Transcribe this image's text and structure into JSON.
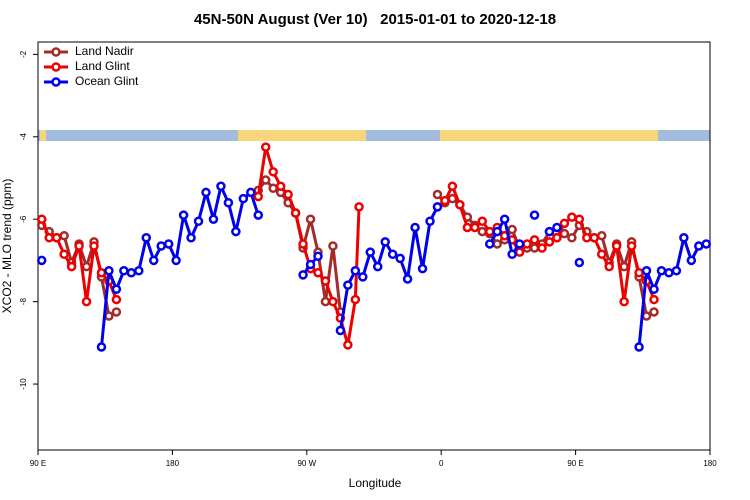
{
  "chart_data": {
    "type": "line",
    "title": "45N-50N August (Ver 10)   2015-01-01 to 2020-12-18",
    "x_label": "Longitude",
    "y_label": "XCO2 - MLO trend (ppm)",
    "xlim": [
      90,
      540
    ],
    "ylim": [
      -11.6,
      -1.7
    ],
    "xticks": [
      {
        "value": 90,
        "label": "90 E"
      },
      180,
      {
        "value": 270,
        "label": "90 W"
      },
      {
        "value": 360,
        "label": "0"
      },
      {
        "value": 450,
        "label": "90 E"
      },
      {
        "value": 540,
        "label": "180"
      }
    ],
    "yticks": [
      -2,
      -4,
      -6,
      -8,
      -10
    ],
    "legend": "top-left",
    "series": [
      {
        "name": "Land Nadir",
        "color": "#a52a2a",
        "x": [
          92.5,
          97.5,
          102.5,
          107.5,
          112.5,
          117.5,
          122.5,
          127.5,
          132.5,
          137.5,
          142.5,
          147.5,
          237.5,
          242.5,
          247.5,
          252.5,
          257.5,
          262.5,
          267.5,
          272.5,
          277.5,
          282.5,
          287.5,
          292.5,
          297.5,
          357.5,
          362.5,
          367.5,
          372.5,
          377.5,
          382.5,
          387.5,
          392.5,
          397.5,
          402.5,
          407.5,
          412.5,
          417.5,
          422.5,
          427.5,
          432.5,
          437.5,
          442.5,
          447.5,
          452.5,
          457.5,
          462.5,
          467.5,
          472.5,
          477.5,
          482.5,
          487.5,
          492.5,
          497.5,
          502.5
        ],
        "values": [
          -6.15,
          -6.3,
          -6.45,
          -6.4,
          -7.05,
          -6.6,
          -7.15,
          -6.55,
          -7.4,
          -8.35,
          -8.25,
          null,
          -5.3,
          -5.05,
          -5.25,
          -5.35,
          -5.6,
          -5.85,
          -6.7,
          -6.0,
          -6.8,
          -8.0,
          -6.65,
          -8.25,
          null,
          -5.4,
          -5.6,
          -5.5,
          -5.65,
          -5.95,
          -6.15,
          -6.3,
          -6.35,
          -6.6,
          -6.5,
          -6.25,
          -6.7,
          -6.7,
          -6.7,
          -6.6,
          -6.3,
          -6.45,
          -6.35,
          -6.45,
          -6.15,
          -6.3,
          -6.45,
          -6.4,
          -7.05,
          -6.6,
          -7.15,
          -6.55,
          -7.4,
          -8.35,
          -8.25
        ]
      },
      {
        "name": "Land Glint",
        "color": "#ee0000",
        "x": [
          92.5,
          97.5,
          102.5,
          107.5,
          112.5,
          117.5,
          122.5,
          127.5,
          132.5,
          137.5,
          142.5,
          147.5,
          237.5,
          242.5,
          247.5,
          252.5,
          257.5,
          262.5,
          267.5,
          272.5,
          277.5,
          282.5,
          287.5,
          292.5,
          297.5,
          302.5,
          305,
          310,
          357.5,
          362.5,
          367.5,
          372.5,
          377.5,
          382.5,
          387.5,
          392.5,
          397.5,
          402.5,
          407.5,
          412.5,
          417.5,
          422.5,
          427.5,
          432.5,
          437.5,
          442.5,
          447.5,
          452.5,
          457.5,
          462.5,
          467.5,
          472.5,
          477.5,
          482.5,
          487.5,
          492.5,
          497.5,
          502.5
        ],
        "values": [
          -6.0,
          -6.45,
          -6.45,
          -6.85,
          -7.15,
          -6.65,
          -8.0,
          -6.65,
          -7.3,
          -7.5,
          -7.95,
          null,
          -5.45,
          -4.25,
          -4.85,
          -5.2,
          -5.4,
          -5.85,
          -6.6,
          -7.2,
          -7.3,
          -7.5,
          -8.0,
          -8.4,
          -9.05,
          -7.95,
          -5.7,
          null,
          -5.7,
          -5.55,
          -5.2,
          -5.65,
          -6.2,
          -6.2,
          -6.05,
          -6.3,
          -6.2,
          -6.4,
          -6.5,
          -6.8,
          -6.6,
          -6.5,
          -6.7,
          -6.55,
          -6.45,
          -6.1,
          -5.95,
          -6.0,
          -6.45,
          -6.45,
          -6.85,
          -7.15,
          -6.65,
          -8.0,
          -6.65,
          -7.3,
          -7.5,
          -7.95
        ]
      },
      {
        "name": "Ocean Glint",
        "color": "#0000ee",
        "x": [
          92.5,
          97.5,
          132.5,
          137.5,
          142.5,
          147.5,
          152.5,
          157.5,
          162.5,
          167.5,
          172.5,
          177.5,
          182.5,
          187.5,
          192.5,
          197.5,
          202.5,
          207.5,
          212.5,
          217.5,
          222.5,
          227.5,
          232.5,
          237.5,
          242.5,
          267.5,
          272.5,
          277.5,
          282.5,
          292.5,
          297.5,
          302.5,
          307.5,
          312.5,
          317.5,
          322.5,
          327.5,
          332.5,
          337.5,
          342.5,
          347.5,
          352.5,
          357.5,
          362.5,
          392.5,
          397.5,
          402.5,
          407.5,
          412.5,
          417.5,
          422.5,
          427.5,
          432.5,
          437.5,
          442.5,
          452.5,
          457.5,
          492.5,
          497.5,
          502.5,
          507.5,
          512.5,
          517.5,
          522.5,
          527.5,
          532.5,
          537.5
        ],
        "values": [
          -7.0,
          null,
          -9.1,
          -7.25,
          -7.7,
          -7.25,
          -7.3,
          -7.25,
          -6.45,
          -7.0,
          -6.65,
          -6.6,
          -7.0,
          -5.9,
          -6.45,
          -6.05,
          -5.35,
          -6.0,
          -5.2,
          -5.6,
          -6.3,
          -5.5,
          -5.35,
          -5.9,
          null,
          -7.35,
          -7.1,
          -6.9,
          null,
          -8.7,
          -7.6,
          -7.25,
          -7.4,
          -6.8,
          -7.15,
          -6.55,
          -6.85,
          -6.95,
          -7.45,
          -6.2,
          -7.2,
          -6.05,
          -5.7,
          null,
          -6.6,
          -6.3,
          -6.0,
          -6.85,
          -6.6,
          null,
          -5.9,
          null,
          -6.3,
          -6.2,
          null,
          -7.05,
          null,
          -9.1,
          -7.25,
          -7.7,
          -7.25,
          -7.3,
          -7.25,
          -6.45,
          -7.0,
          -6.65,
          -6.6
        ]
      }
    ]
  }
}
